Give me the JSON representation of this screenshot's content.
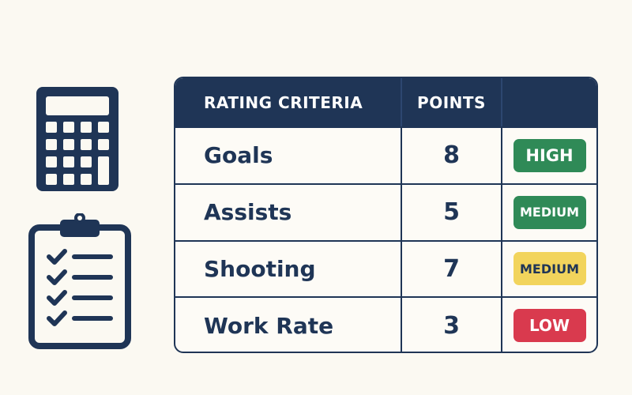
{
  "table": {
    "headers": {
      "criteria": "RATING CRITERIA",
      "points": "POINTS",
      "level": ""
    },
    "rows": [
      {
        "criteria": "Goals",
        "points": "8",
        "level": "HIGH",
        "level_color": "#2f8a57",
        "level_text_color": "#ffffff"
      },
      {
        "criteria": "Assists",
        "points": "5",
        "level": "MEDIUM",
        "level_color": "#2f8a57",
        "level_text_color": "#ffffff"
      },
      {
        "criteria": "Shooting",
        "points": "7",
        "level": "MEDIUM",
        "level_color": "#f2d45c",
        "level_text_color": "#1f3556"
      },
      {
        "criteria": "Work Rate",
        "points": "3",
        "level": "LOW",
        "level_color": "#d93a4e",
        "level_text_color": "#ffffff"
      }
    ]
  },
  "icons": {
    "left_top": "calculator-icon",
    "left_bottom": "clipboard-checklist-icon"
  },
  "colors": {
    "navy": "#1f3556",
    "background": "#fbf9f2"
  }
}
